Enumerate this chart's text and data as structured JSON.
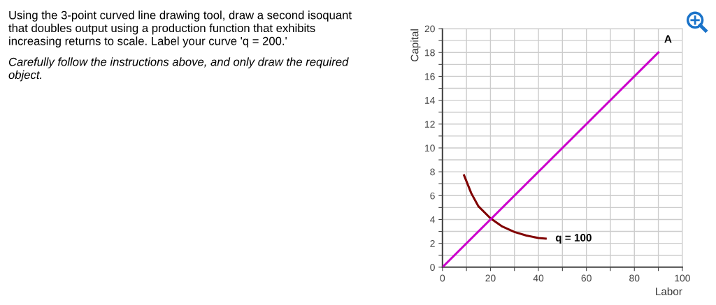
{
  "chart_data": {
    "type": "line",
    "xlabel": "Labor",
    "ylabel": "Capital",
    "series": [
      {
        "name": "q = 100",
        "color": "#800000",
        "x": [
          9,
          12,
          15,
          20,
          25,
          30,
          35,
          40,
          43
        ],
        "values": [
          7.7,
          6.2,
          5.1,
          4.1,
          3.4,
          2.95,
          2.65,
          2.45,
          2.4
        ]
      },
      {
        "color": "#cc00cc",
        "x": [
          0,
          90
        ],
        "values": [
          0,
          18
        ]
      }
    ],
    "annotations": [
      "Using the 3-point curved line drawing tool, draw a second isoquant that doubles output using a production function that exhibits increasing returns to scale. Label your curve 'q = 200.'",
      "Carefully follow the instructions above, and only draw the required object.",
      {
        "text": "A",
        "x": 90,
        "y": 18
      }
    ],
    "xlim": [
      0,
      100
    ],
    "ylim": [
      0,
      20
    ],
    "xticks": [
      0,
      {
        "value": 10,
        "label": null
      },
      20,
      {
        "value": 30,
        "label": null
      },
      40,
      {
        "value": 50,
        "label": null
      },
      60,
      {
        "value": 70,
        "label": null
      },
      80,
      {
        "value": 90,
        "label": null
      },
      100
    ],
    "yticks": [
      0,
      {
        "value": 1,
        "label": null
      },
      2,
      {
        "value": 3,
        "label": null
      },
      4,
      {
        "value": 5,
        "label": null
      },
      6,
      {
        "value": 7,
        "label": null
      },
      8,
      {
        "value": 9,
        "label": null
      },
      10,
      {
        "value": 11,
        "label": null
      },
      12,
      {
        "value": 13,
        "label": null
      },
      14,
      {
        "value": 15,
        "label": null
      },
      16,
      {
        "value": 17,
        "label": null
      },
      18,
      {
        "value": 19,
        "label": null
      },
      20
    ],
    "grid": true,
    "marker": "none",
    "line_style": "solid",
    "legend": false
  }
}
